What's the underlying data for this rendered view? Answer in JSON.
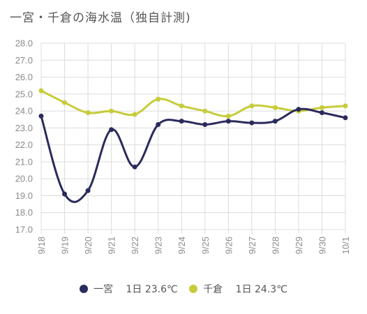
{
  "chart_data": {
    "type": "line",
    "title": "一宮・千倉の海水温（独自計測)",
    "x": [
      "9/18",
      "9/19",
      "9/20",
      "9/21",
      "9/22",
      "9/23",
      "9/24",
      "9/25",
      "9/26",
      "9/27",
      "9/28",
      "9/29",
      "9/30",
      "10/1"
    ],
    "ylim": [
      17.0,
      28.0
    ],
    "yticks": [
      "17.0",
      "18.0",
      "19.0",
      "20.0",
      "21.0",
      "22.0",
      "23.0",
      "24.0",
      "25.0",
      "26.0",
      "27.0",
      "28.0"
    ],
    "grid": true,
    "legend_position": "bottom",
    "series": [
      {
        "name": "一宮",
        "color": "#2b2a5c",
        "values": [
          23.7,
          19.1,
          19.3,
          22.9,
          20.7,
          23.2,
          23.4,
          23.2,
          23.4,
          23.3,
          23.4,
          24.1,
          23.9,
          23.6
        ]
      },
      {
        "name": "千倉",
        "color": "#c6cc3a",
        "values": [
          25.2,
          24.5,
          23.9,
          24.0,
          23.8,
          24.7,
          24.3,
          24.0,
          23.7,
          24.3,
          24.2,
          24.0,
          24.2,
          24.3
        ]
      }
    ]
  },
  "legend": {
    "items": [
      {
        "label": "一宮　 1日 23.6℃",
        "color": "#2b2a5c"
      },
      {
        "label": "千倉　 1日 24.3℃",
        "color": "#c6cc3a"
      }
    ]
  }
}
